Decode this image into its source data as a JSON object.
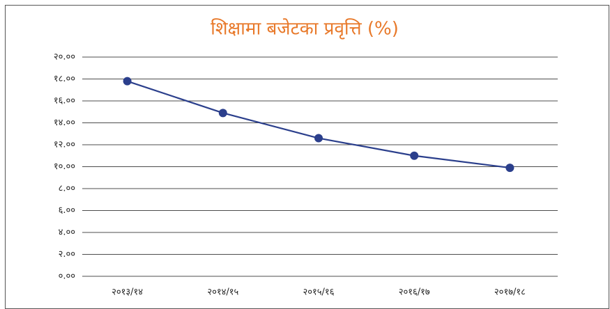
{
  "chart_data": {
    "type": "line",
    "title": "शिक्षामा बजेटका प्रवृत्ति (%)",
    "categories": [
      "२०१३/१४",
      "२०१४/१५",
      "२०१५/१६",
      "२०१६/१७",
      "२०१७/१८"
    ],
    "series": [
      {
        "name": null,
        "color": "#2b3f8c",
        "values": [
          17.8,
          14.9,
          12.6,
          11.0,
          9.9
        ]
      }
    ],
    "ylim": [
      0,
      20
    ],
    "yticks": [
      {
        "value": 0,
        "label": "०.००"
      },
      {
        "value": 2,
        "label": "२.००"
      },
      {
        "value": 4,
        "label": "४.००"
      },
      {
        "value": 6,
        "label": "६.००"
      },
      {
        "value": 8,
        "label": "८.००"
      },
      {
        "value": 10,
        "label": "१०.००"
      },
      {
        "value": 12,
        "label": "१२.००"
      },
      {
        "value": 14,
        "label": "१४.००"
      },
      {
        "value": 16,
        "label": "१६.००"
      },
      {
        "value": 18,
        "label": "१८.००"
      },
      {
        "value": 20,
        "label": "२०.००"
      }
    ],
    "grid": true,
    "title_color": "#e8792a"
  }
}
